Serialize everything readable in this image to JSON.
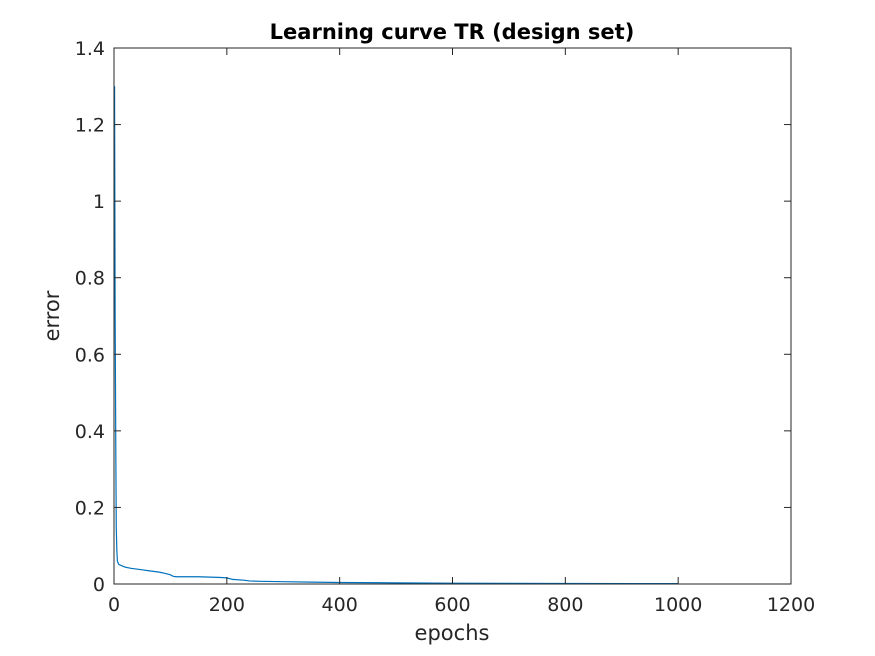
{
  "chart_data": {
    "type": "line",
    "title": "Learning curve TR (design set)",
    "xlabel": "epochs",
    "ylabel": "error",
    "xlim": [
      0,
      1200
    ],
    "ylim": [
      0,
      1.4
    ],
    "xticks": [
      0,
      200,
      400,
      600,
      800,
      1000,
      1200
    ],
    "yticks": [
      0,
      0.2,
      0.4,
      0.6,
      0.8,
      1,
      1.2,
      1.4
    ],
    "xtick_labels": [
      "0",
      "200",
      "400",
      "600",
      "800",
      "1000",
      "1200"
    ],
    "ytick_labels": [
      "0",
      "0.2",
      "0.4",
      "0.6",
      "0.8",
      "1",
      "1.2",
      "1.4"
    ],
    "grid": false,
    "series": [
      {
        "color": "#0072BD",
        "x": [
          1,
          2,
          3,
          4,
          5,
          6,
          8,
          10,
          15,
          20,
          30,
          40,
          50,
          60,
          70,
          80,
          90,
          100,
          105,
          110,
          130,
          150,
          170,
          190,
          200,
          210,
          230,
          240,
          260,
          300,
          350,
          400,
          500,
          600,
          800,
          1000
        ],
        "y": [
          1.3,
          0.71,
          0.4,
          0.15,
          0.09,
          0.06,
          0.052,
          0.05,
          0.047,
          0.044,
          0.041,
          0.039,
          0.037,
          0.035,
          0.033,
          0.031,
          0.028,
          0.024,
          0.02,
          0.019,
          0.019,
          0.019,
          0.018,
          0.017,
          0.016,
          0.012,
          0.01,
          0.008,
          0.007,
          0.006,
          0.005,
          0.004,
          0.003,
          0.002,
          0.0015,
          0.001
        ]
      }
    ]
  }
}
